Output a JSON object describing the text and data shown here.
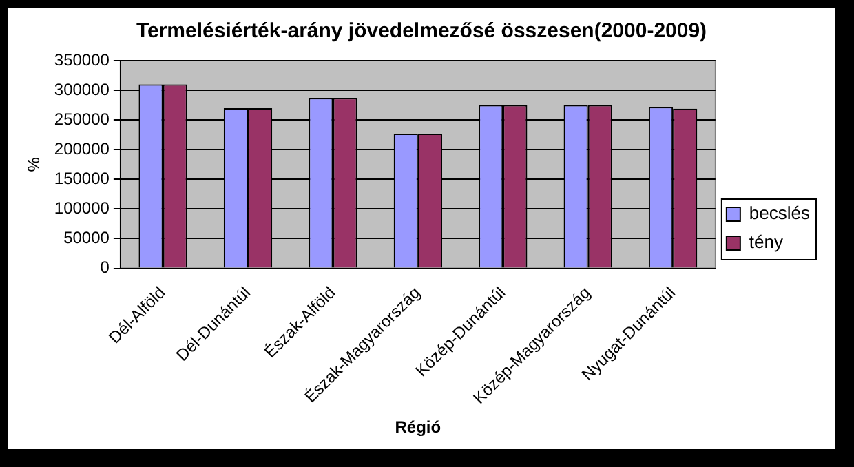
{
  "chart_data": {
    "type": "bar",
    "title": "Termelésiérték-arány jövedelmezősé összesen(2000-2009)",
    "xlabel": "Régió",
    "ylabel": "%",
    "categories": [
      "Dél-Alföld",
      "Dél-Dunántúl",
      "Észak-Alföld",
      "Észak-Magyarország",
      "Közép-Dunántúl",
      "Közép-Magyarország",
      "Nyugat-Dunántúl"
    ],
    "series": [
      {
        "name": "becslés",
        "color": "#9999ff",
        "values": [
          310000,
          270000,
          287000,
          227000,
          275000,
          275000,
          272000
        ]
      },
      {
        "name": "tény",
        "color": "#993366",
        "values": [
          310000,
          270000,
          287000,
          227000,
          275000,
          275000,
          269000
        ]
      }
    ],
    "ylim": [
      0,
      350000
    ],
    "yticks": [
      0,
      50000,
      100000,
      150000,
      200000,
      250000,
      300000,
      350000
    ],
    "grid": "y",
    "legend": "right"
  }
}
